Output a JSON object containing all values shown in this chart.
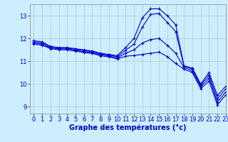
{
  "background_color": "#cceeff",
  "grid_color": "#aacccc",
  "line_color": "#0000cc",
  "xlabel": "Graphe des températures (°c)",
  "xlabel_fontsize": 7,
  "tick_fontsize": 6,
  "xlim": [
    -0.5,
    23
  ],
  "ylim": [
    8.7,
    13.5
  ],
  "yticks": [
    9,
    10,
    11,
    12,
    13
  ],
  "xticks": [
    0,
    1,
    2,
    3,
    4,
    5,
    6,
    7,
    8,
    9,
    10,
    11,
    12,
    13,
    14,
    15,
    16,
    17,
    18,
    19,
    20,
    21,
    22,
    23
  ],
  "curves": [
    {
      "x": [
        0,
        1,
        2,
        3,
        4,
        5,
        6,
        7,
        8,
        9,
        10,
        11,
        12,
        13,
        14,
        15,
        16,
        17,
        18,
        19,
        20,
        21,
        22,
        23
      ],
      "y": [
        11.9,
        11.85,
        11.65,
        11.6,
        11.6,
        11.55,
        11.5,
        11.45,
        11.35,
        11.3,
        11.25,
        11.6,
        12.0,
        12.9,
        13.3,
        13.3,
        13.0,
        12.6,
        10.8,
        10.7,
        10.0,
        10.5,
        9.5,
        9.9
      ]
    },
    {
      "x": [
        0,
        1,
        2,
        3,
        4,
        5,
        6,
        7,
        8,
        9,
        10,
        11,
        12,
        13,
        14,
        15,
        16,
        17,
        18,
        19,
        20,
        21,
        22,
        23
      ],
      "y": [
        11.85,
        11.8,
        11.62,
        11.58,
        11.58,
        11.52,
        11.46,
        11.42,
        11.32,
        11.27,
        11.2,
        11.48,
        11.75,
        12.5,
        13.05,
        13.1,
        12.7,
        12.3,
        10.78,
        10.65,
        9.95,
        10.38,
        9.35,
        9.78
      ]
    },
    {
      "x": [
        0,
        1,
        2,
        3,
        4,
        5,
        6,
        7,
        8,
        9,
        10,
        11,
        12,
        13,
        14,
        15,
        16,
        17,
        18,
        19,
        20,
        21,
        22,
        23
      ],
      "y": [
        11.8,
        11.75,
        11.58,
        11.54,
        11.54,
        11.48,
        11.42,
        11.38,
        11.28,
        11.23,
        11.15,
        11.35,
        11.5,
        11.8,
        11.95,
        12.0,
        11.7,
        11.35,
        10.72,
        10.58,
        9.88,
        10.25,
        9.2,
        9.65
      ]
    },
    {
      "x": [
        0,
        1,
        2,
        3,
        4,
        5,
        6,
        7,
        8,
        9,
        10,
        11,
        12,
        13,
        14,
        15,
        16,
        17,
        18,
        19,
        20,
        21,
        22,
        23
      ],
      "y": [
        11.75,
        11.7,
        11.55,
        11.5,
        11.5,
        11.44,
        11.38,
        11.34,
        11.24,
        11.19,
        11.1,
        11.22,
        11.25,
        11.3,
        11.35,
        11.4,
        11.2,
        10.9,
        10.65,
        10.5,
        9.8,
        10.12,
        9.08,
        9.52
      ]
    }
  ]
}
